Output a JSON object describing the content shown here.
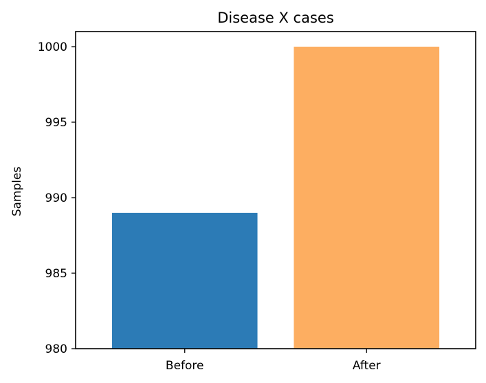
{
  "chart_data": {
    "type": "bar",
    "title": "Disease X cases",
    "xlabel": "",
    "ylabel": "Samples",
    "categories": [
      "Before",
      "After"
    ],
    "values": [
      989,
      1000
    ],
    "colors": [
      "#2c7bb6",
      "#fdae61"
    ],
    "ylim": [
      980,
      1001
    ],
    "yticks": [
      980,
      985,
      990,
      995,
      1000
    ],
    "ytick_labels": [
      "980",
      "985",
      "990",
      "995",
      "1000"
    ],
    "grid": false,
    "legend": "none"
  }
}
